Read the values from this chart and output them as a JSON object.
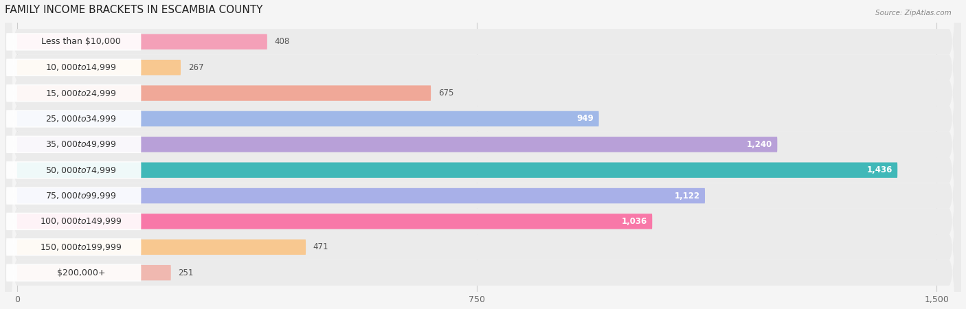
{
  "title": "FAMILY INCOME BRACKETS IN ESCAMBIA COUNTY",
  "source": "Source: ZipAtlas.com",
  "categories": [
    "Less than $10,000",
    "$10,000 to $14,999",
    "$15,000 to $24,999",
    "$25,000 to $34,999",
    "$35,000 to $49,999",
    "$50,000 to $74,999",
    "$75,000 to $99,999",
    "$100,000 to $149,999",
    "$150,000 to $199,999",
    "$200,000+"
  ],
  "values": [
    408,
    267,
    675,
    949,
    1240,
    1436,
    1122,
    1036,
    471,
    251
  ],
  "bar_colors": [
    "#f4a0b8",
    "#f8c890",
    "#f0a898",
    "#a0b8e8",
    "#b8a0d8",
    "#40b8b8",
    "#a8b0e8",
    "#f878a8",
    "#f8c890",
    "#f0b8b0"
  ],
  "xlim_left": -20,
  "xlim_right": 1540,
  "xticks": [
    0,
    750,
    1500
  ],
  "background_color": "#f5f5f5",
  "row_bg_color": "#ebebeb",
  "title_fontsize": 11,
  "label_fontsize": 9,
  "value_fontsize": 8.5,
  "tick_fontsize": 9,
  "value_threshold": 700
}
